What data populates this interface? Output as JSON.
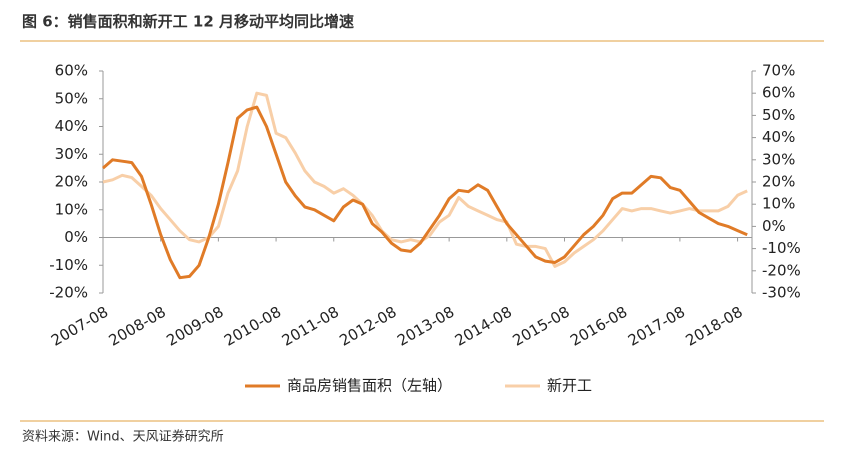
{
  "chart_data": {
    "type": "line",
    "title": "图 6：销售面积和新开工 12 月移动平均同比增速",
    "source": "资料来源：Wind、天风证券研究所",
    "x": [
      "2007-08",
      "2007-10",
      "2007-12",
      "2008-02",
      "2008-04",
      "2008-06",
      "2008-08",
      "2008-10",
      "2008-12",
      "2009-02",
      "2009-04",
      "2009-06",
      "2009-08",
      "2009-10",
      "2009-12",
      "2010-02",
      "2010-04",
      "2010-06",
      "2010-08",
      "2010-10",
      "2010-12",
      "2011-02",
      "2011-04",
      "2011-06",
      "2011-08",
      "2011-10",
      "2011-12",
      "2012-02",
      "2012-04",
      "2012-06",
      "2012-08",
      "2012-10",
      "2012-12",
      "2013-02",
      "2013-04",
      "2013-06",
      "2013-08",
      "2013-10",
      "2013-12",
      "2014-02",
      "2014-04",
      "2014-06",
      "2014-08",
      "2014-10",
      "2014-12",
      "2015-02",
      "2015-04",
      "2015-06",
      "2015-08",
      "2015-10",
      "2015-12",
      "2016-02",
      "2016-04",
      "2016-06",
      "2016-08",
      "2016-10",
      "2016-12",
      "2017-02",
      "2017-04",
      "2017-06",
      "2017-08",
      "2017-10",
      "2017-12",
      "2018-02",
      "2018-04",
      "2018-06",
      "2018-08",
      "2018-10"
    ],
    "xlim": [
      "2007-08",
      "2018-11"
    ],
    "xticks": [
      "2007-08",
      "2008-08",
      "2009-08",
      "2010-08",
      "2011-08",
      "2012-08",
      "2013-08",
      "2014-08",
      "2015-08",
      "2016-08",
      "2017-08",
      "2018-08"
    ],
    "series": [
      {
        "name": "商品房销售面积（左轴）",
        "color": "#e07b27",
        "axis": "y",
        "values": [
          25,
          28,
          27.5,
          27,
          22,
          12,
          1,
          -8,
          -14.5,
          -14,
          -10,
          0,
          12,
          27,
          43,
          46,
          47,
          40,
          30,
          20,
          15,
          11,
          10,
          8,
          6,
          11,
          13.5,
          12,
          5,
          2,
          -2,
          -4.5,
          -5,
          -2,
          3,
          8,
          14,
          17,
          16.5,
          19,
          17,
          11,
          5,
          1,
          -3,
          -7,
          -8.5,
          -9,
          -7,
          -3,
          1,
          4,
          8,
          14,
          16,
          16,
          19,
          22,
          21.5,
          18,
          17,
          13,
          9,
          7,
          5,
          4,
          2.5,
          1
        ]
      },
      {
        "name": "新开工",
        "color": "#f8cfa8",
        "axis": "y2",
        "values": [
          20,
          21,
          23,
          22,
          18,
          14,
          8,
          3,
          -2,
          -6,
          -7,
          -5,
          0,
          15,
          25,
          45,
          60,
          59,
          42,
          40,
          33,
          25,
          20,
          18,
          15,
          17,
          14,
          10,
          5,
          -2,
          -6,
          -7,
          -6,
          -7,
          -4,
          2,
          5,
          13,
          9,
          7,
          5,
          3,
          2,
          -8,
          -9,
          -9,
          -10,
          -18,
          -16,
          -12,
          -9,
          -6,
          -2,
          3,
          8,
          7,
          8,
          8,
          7,
          6,
          7,
          8,
          7,
          7,
          7,
          9,
          14,
          16
        ]
      }
    ],
    "ylim": [
      -20,
      60
    ],
    "yticks": [
      {
        "value": -20,
        "label": "-20%"
      },
      {
        "value": -10,
        "label": "-10%"
      },
      {
        "value": 0,
        "label": "0%"
      },
      {
        "value": 10,
        "label": "10%"
      },
      {
        "value": 20,
        "label": "20%"
      },
      {
        "value": 30,
        "label": "30%"
      },
      {
        "value": 40,
        "label": "40%"
      },
      {
        "value": 50,
        "label": "50%"
      },
      {
        "value": 60,
        "label": "60%"
      }
    ],
    "y2lim": [
      -30,
      70
    ],
    "y2ticks": [
      {
        "value": -30,
        "label": "-30%"
      },
      {
        "value": -20,
        "label": "-20%"
      },
      {
        "value": -10,
        "label": "-10%"
      },
      {
        "value": 0,
        "label": "0%"
      },
      {
        "value": 10,
        "label": "10%"
      },
      {
        "value": 20,
        "label": "20%"
      },
      {
        "value": 30,
        "label": "30%"
      },
      {
        "value": 40,
        "label": "40%"
      },
      {
        "value": 50,
        "label": "50%"
      },
      {
        "value": 60,
        "label": "60%"
      },
      {
        "value": 70,
        "label": "70%"
      }
    ],
    "legend": "bottom"
  }
}
